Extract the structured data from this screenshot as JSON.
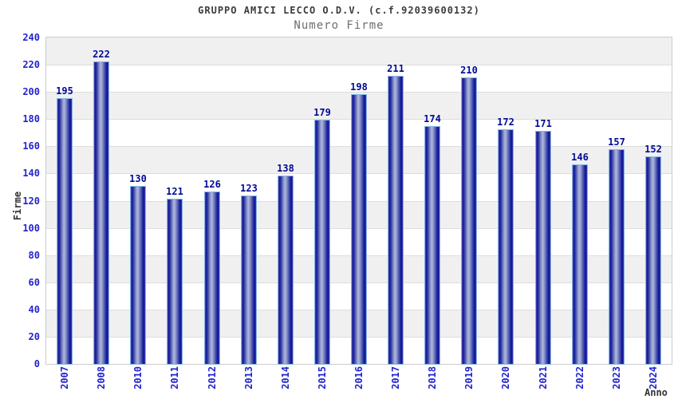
{
  "header": {
    "title": "GRUPPO AMICI LECCO O.D.V. (c.f.92039600132)",
    "subtitle": "Numero Firme"
  },
  "chart_data": {
    "type": "bar",
    "title": "GRUPPO AMICI LECCO O.D.V. (c.f.92039600132)",
    "subtitle": "Numero Firme",
    "xlabel": "Anno",
    "ylabel": "Firme",
    "categories": [
      "2007",
      "2008",
      "2010",
      "2011",
      "2012",
      "2013",
      "2014",
      "2015",
      "2016",
      "2017",
      "2018",
      "2019",
      "2020",
      "2021",
      "2022",
      "2023",
      "2024"
    ],
    "values": [
      195,
      222,
      130,
      121,
      126,
      123,
      138,
      179,
      198,
      211,
      174,
      210,
      172,
      171,
      146,
      157,
      152
    ],
    "ylim": [
      0,
      240
    ],
    "ytick_step": 20,
    "grid": "horizontal-bands-alternating",
    "legend": "none",
    "colors": {
      "band_gray": "#f0f0f1",
      "band_white": "#ffffff",
      "gridline": "#dddddd",
      "plot_border": "#cccccc",
      "bar_border": "#85b5e2",
      "bar_dark": "#0e0e9a",
      "bar_highlight": "#aeb6da",
      "tick_label": "#2323cd",
      "value_label": "#000a96",
      "title_text": "#3c3c3c",
      "subtitle_text": "#6e6e6e",
      "axis_title_text": "#333333"
    }
  }
}
